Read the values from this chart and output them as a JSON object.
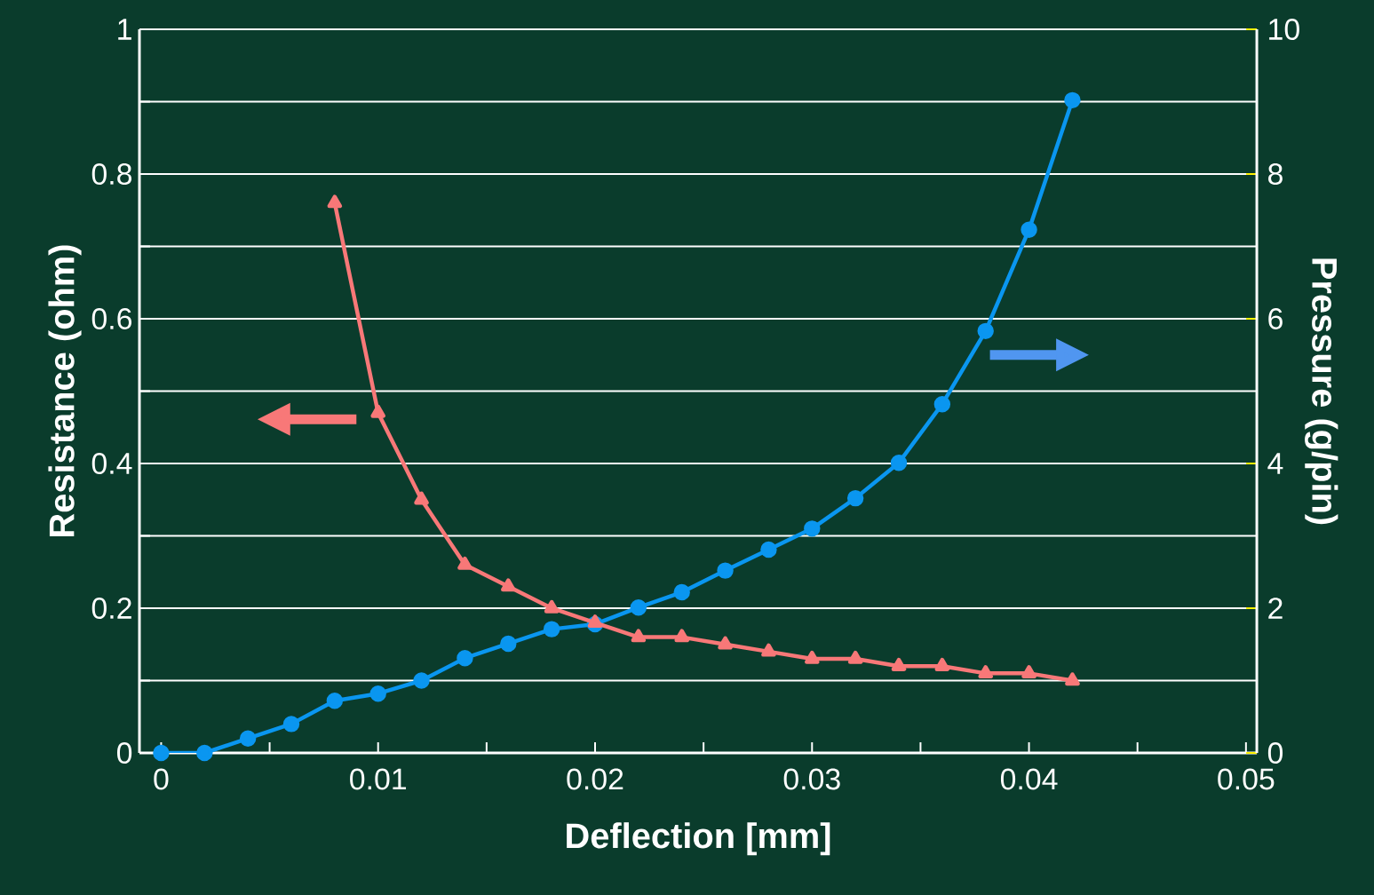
{
  "chart_data": {
    "type": "line",
    "xlabel": "Deflection [mm]",
    "ylabel": "Resistance (ohm)",
    "y2label": "Pressure (g/pin)",
    "xlim": [
      -0.001,
      0.0505
    ],
    "ylim": [
      0,
      1
    ],
    "y2lim": [
      0,
      10
    ],
    "xticks": [
      0,
      {
        "value": 0.005,
        "label": null
      },
      0.01,
      {
        "value": 0.015,
        "label": null
      },
      0.02,
      {
        "value": 0.025,
        "label": null
      },
      0.03,
      {
        "value": 0.035,
        "label": null
      },
      0.04,
      {
        "value": 0.045,
        "label": null
      },
      0.05
    ],
    "yticks": [
      0,
      {
        "value": 0.1,
        "label": null
      },
      0.2,
      {
        "value": 0.3,
        "label": null
      },
      0.4,
      {
        "value": 0.5,
        "label": null
      },
      0.6,
      {
        "value": 0.7,
        "label": null
      },
      0.8,
      {
        "value": 0.9,
        "label": null
      },
      1
    ],
    "y2ticks": [
      0,
      2,
      4,
      6,
      8,
      10
    ],
    "grid": "y",
    "line_style": "solid",
    "series": [
      {
        "color": "#f87878",
        "marker": "triangle",
        "x": [
          0.008,
          0.01,
          0.012,
          0.014,
          0.016,
          0.018,
          0.02,
          0.022,
          0.024,
          0.026,
          0.028,
          0.03,
          0.032,
          0.034,
          0.036,
          0.038,
          0.04,
          0.042
        ],
        "values": [
          0.76,
          0.47,
          0.35,
          0.26,
          0.23,
          0.2,
          0.18,
          0.16,
          0.16,
          0.15,
          0.14,
          0.13,
          0.13,
          0.12,
          0.12,
          0.11,
          0.11,
          0.1
        ]
      },
      {
        "color": "#0a96f0",
        "marker": "circle",
        "axis": "y2",
        "x": [
          0,
          0.002,
          0.004,
          0.006,
          0.008,
          0.01,
          0.012,
          0.014,
          0.016,
          0.018,
          0.02,
          0.022,
          0.024,
          0.026,
          0.028,
          0.03,
          0.032,
          0.034,
          0.036,
          0.038,
          0.04,
          0.042
        ],
        "values": [
          0,
          0,
          0.2,
          0.4,
          0.72,
          0.82,
          1.0,
          1.31,
          1.51,
          1.71,
          1.78,
          2.01,
          2.22,
          2.52,
          2.81,
          3.1,
          3.52,
          4.01,
          4.82,
          5.83,
          7.23,
          9.02
        ]
      }
    ]
  }
}
